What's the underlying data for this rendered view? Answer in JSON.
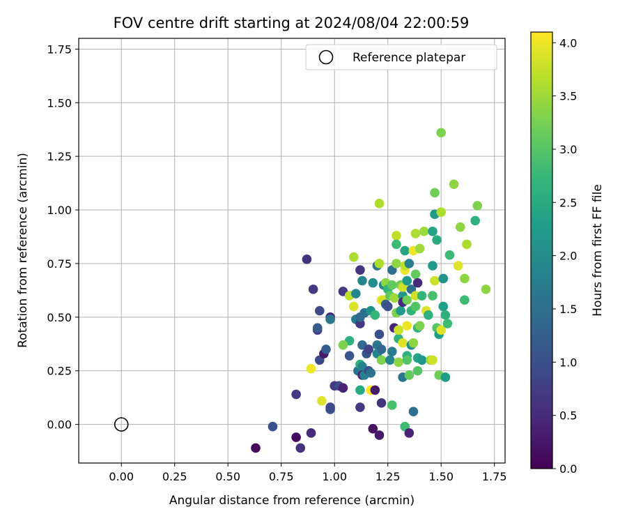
{
  "chart_data": {
    "type": "scatter",
    "title": "FOV centre drift starting at 2024/08/04 22:00:59",
    "xlabel": "Angular distance from reference (arcmin)",
    "ylabel": "Rotation from reference (arcmin)",
    "xlim": [
      -0.2,
      1.8
    ],
    "ylim": [
      -0.18,
      1.8
    ],
    "xticks": [
      0.0,
      0.25,
      0.5,
      0.75,
      1.0,
      1.25,
      1.5,
      1.75
    ],
    "xtick_labels": [
      "0.00",
      "0.25",
      "0.50",
      "0.75",
      "1.00",
      "1.25",
      "1.50",
      "1.75"
    ],
    "yticks": [
      0.0,
      0.25,
      0.5,
      0.75,
      1.0,
      1.25,
      1.5,
      1.75
    ],
    "ytick_labels": [
      "0.00",
      "0.25",
      "0.50",
      "0.75",
      "1.00",
      "1.25",
      "1.50",
      "1.75"
    ],
    "grid": true,
    "legend": {
      "placement": "top-right",
      "entries": [
        "Reference platepar"
      ]
    },
    "reference_point": {
      "x": 0.0,
      "y": 0.0
    },
    "colorbar": {
      "label": "Hours from first FF file",
      "range": [
        0.0,
        4.1
      ],
      "ticks": [
        0.0,
        0.5,
        1.0,
        1.5,
        2.0,
        2.5,
        3.0,
        3.5,
        4.0
      ],
      "tick_labels": [
        "0.0",
        "0.5",
        "1.0",
        "1.5",
        "2.0",
        "2.5",
        "3.0",
        "3.5",
        "4.0"
      ],
      "colormap": "viridis"
    },
    "points": [
      {
        "x": 0.63,
        "y": -0.11,
        "t": 0.1
      },
      {
        "x": 0.82,
        "y": -0.06,
        "t": 0.1
      },
      {
        "x": 0.84,
        "y": -0.11,
        "t": 0.6
      },
      {
        "x": 0.71,
        "y": -0.01,
        "t": 1.0
      },
      {
        "x": 0.89,
        "y": -0.04,
        "t": 0.5
      },
      {
        "x": 0.82,
        "y": 0.14,
        "t": 0.7
      },
      {
        "x": 0.87,
        "y": 0.77,
        "t": 0.6
      },
      {
        "x": 0.9,
        "y": 0.63,
        "t": 0.7
      },
      {
        "x": 0.93,
        "y": 0.53,
        "t": 0.9
      },
      {
        "x": 0.92,
        "y": 0.44,
        "t": 0.8
      },
      {
        "x": 0.92,
        "y": 0.45,
        "t": 1.2
      },
      {
        "x": 0.93,
        "y": 0.3,
        "t": 0.9
      },
      {
        "x": 0.95,
        "y": 0.33,
        "t": 0.3
      },
      {
        "x": 0.96,
        "y": 0.35,
        "t": 1.2
      },
      {
        "x": 0.94,
        "y": 0.11,
        "t": 3.9
      },
      {
        "x": 0.89,
        "y": 0.26,
        "t": 4.0
      },
      {
        "x": 0.98,
        "y": 0.07,
        "t": 1.1
      },
      {
        "x": 0.98,
        "y": 0.08,
        "t": 0.9
      },
      {
        "x": 1.0,
        "y": 0.18,
        "t": 0.7
      },
      {
        "x": 1.02,
        "y": 0.18,
        "t": 0.9
      },
      {
        "x": 1.04,
        "y": 0.17,
        "t": 0.4
      },
      {
        "x": 0.98,
        "y": 0.5,
        "t": 0.5
      },
      {
        "x": 0.98,
        "y": 0.49,
        "t": 1.6
      },
      {
        "x": 1.04,
        "y": 0.62,
        "t": 0.7
      },
      {
        "x": 1.07,
        "y": 0.39,
        "t": 2.6
      },
      {
        "x": 1.07,
        "y": 0.32,
        "t": 1.1
      },
      {
        "x": 1.04,
        "y": 0.37,
        "t": 3.3
      },
      {
        "x": 1.07,
        "y": 0.6,
        "t": 3.7
      },
      {
        "x": 1.09,
        "y": 0.78,
        "t": 3.6
      },
      {
        "x": 1.09,
        "y": 0.55,
        "t": 3.9
      },
      {
        "x": 1.1,
        "y": 0.49,
        "t": 1.7
      },
      {
        "x": 1.1,
        "y": 0.61,
        "t": 1.9
      },
      {
        "x": 1.11,
        "y": 0.25,
        "t": 1.6
      },
      {
        "x": 1.12,
        "y": 0.72,
        "t": 0.6
      },
      {
        "x": 1.12,
        "y": 0.47,
        "t": 0.7
      },
      {
        "x": 1.12,
        "y": 0.5,
        "t": 1.4
      },
      {
        "x": 1.12,
        "y": 0.08,
        "t": 0.7
      },
      {
        "x": 1.12,
        "y": 0.28,
        "t": 2.6
      },
      {
        "x": 1.13,
        "y": 0.67,
        "t": 1.9
      },
      {
        "x": 1.13,
        "y": 0.27,
        "t": 1.8
      },
      {
        "x": 1.13,
        "y": 0.23,
        "t": 0.5
      },
      {
        "x": 1.12,
        "y": 0.16,
        "t": 2.5
      },
      {
        "x": 1.14,
        "y": 0.52,
        "t": 1.5
      },
      {
        "x": 1.14,
        "y": 0.23,
        "t": 1.8
      },
      {
        "x": 1.13,
        "y": 0.37,
        "t": 1.4
      },
      {
        "x": 1.15,
        "y": 0.33,
        "t": 1.1
      },
      {
        "x": 1.16,
        "y": 0.35,
        "t": 0.8
      },
      {
        "x": 1.17,
        "y": 0.16,
        "t": 4.1
      },
      {
        "x": 1.17,
        "y": 0.53,
        "t": 2.1
      },
      {
        "x": 1.16,
        "y": 0.25,
        "t": 1.0
      },
      {
        "x": 1.17,
        "y": 0.24,
        "t": 1.5
      },
      {
        "x": 1.18,
        "y": 0.66,
        "t": 2.0
      },
      {
        "x": 1.18,
        "y": -0.02,
        "t": 0.2
      },
      {
        "x": 1.19,
        "y": 0.51,
        "t": 2.7
      },
      {
        "x": 1.19,
        "y": 0.16,
        "t": 0.3
      },
      {
        "x": 1.2,
        "y": 0.74,
        "t": 1.6
      },
      {
        "x": 1.21,
        "y": 0.75,
        "t": 3.6
      },
      {
        "x": 1.2,
        "y": 0.37,
        "t": 1.6
      },
      {
        "x": 1.2,
        "y": 0.33,
        "t": 1.9
      },
      {
        "x": 1.21,
        "y": 1.03,
        "t": 3.6
      },
      {
        "x": 1.21,
        "y": 0.42,
        "t": 1.0
      },
      {
        "x": 1.21,
        "y": -0.05,
        "t": 0.3
      },
      {
        "x": 1.22,
        "y": 0.58,
        "t": 4.0
      },
      {
        "x": 1.22,
        "y": 0.35,
        "t": 1.4
      },
      {
        "x": 1.22,
        "y": 0.3,
        "t": 3.3
      },
      {
        "x": 1.23,
        "y": 0.65,
        "t": 1.9
      },
      {
        "x": 1.22,
        "y": 0.1,
        "t": 0.6
      },
      {
        "x": 1.23,
        "y": 0.58,
        "t": 3.8
      },
      {
        "x": 1.24,
        "y": 0.66,
        "t": 3.4
      },
      {
        "x": 1.24,
        "y": 0.56,
        "t": 1.2
      },
      {
        "x": 1.25,
        "y": 0.55,
        "t": 1.0
      },
      {
        "x": 1.25,
        "y": 0.63,
        "t": 2.7
      },
      {
        "x": 1.26,
        "y": 0.6,
        "t": 3.1
      },
      {
        "x": 1.26,
        "y": 0.3,
        "t": 1.9
      },
      {
        "x": 1.27,
        "y": 0.34,
        "t": 1.7
      },
      {
        "x": 1.27,
        "y": 0.72,
        "t": 1.5
      },
      {
        "x": 1.27,
        "y": 0.09,
        "t": 2.9
      },
      {
        "x": 1.27,
        "y": 0.65,
        "t": 3.1
      },
      {
        "x": 1.28,
        "y": 0.59,
        "t": 3.5
      },
      {
        "x": 1.28,
        "y": 0.45,
        "t": 0.4
      },
      {
        "x": 1.29,
        "y": 0.88,
        "t": 3.7
      },
      {
        "x": 1.29,
        "y": 0.84,
        "t": 2.8
      },
      {
        "x": 1.29,
        "y": 0.75,
        "t": 3.4
      },
      {
        "x": 1.29,
        "y": 0.52,
        "t": 3.3
      },
      {
        "x": 1.3,
        "y": 0.44,
        "t": 2.4
      },
      {
        "x": 1.3,
        "y": 0.4,
        "t": 2.6
      },
      {
        "x": 1.3,
        "y": 0.44,
        "t": 3.8
      },
      {
        "x": 1.3,
        "y": 0.29,
        "t": 3.4
      },
      {
        "x": 1.31,
        "y": 0.65,
        "t": 3.2
      },
      {
        "x": 1.31,
        "y": 0.53,
        "t": 2.2
      },
      {
        "x": 1.32,
        "y": 0.6,
        "t": 2.2
      },
      {
        "x": 1.32,
        "y": 0.57,
        "t": 0.5
      },
      {
        "x": 1.32,
        "y": 0.64,
        "t": 3.8
      },
      {
        "x": 1.32,
        "y": 0.22,
        "t": 1.6
      },
      {
        "x": 1.32,
        "y": 0.38,
        "t": 3.9
      },
      {
        "x": 1.33,
        "y": 0.72,
        "t": 4.0
      },
      {
        "x": 1.33,
        "y": 0.81,
        "t": 2.4
      },
      {
        "x": 1.33,
        "y": 0.74,
        "t": 3.7
      },
      {
        "x": 1.33,
        "y": -0.01,
        "t": 2.8
      },
      {
        "x": 1.34,
        "y": 0.67,
        "t": 2.2
      },
      {
        "x": 1.34,
        "y": 0.58,
        "t": 3.2
      },
      {
        "x": 1.34,
        "y": 0.46,
        "t": 4.0
      },
      {
        "x": 1.34,
        "y": 0.32,
        "t": 2.6
      },
      {
        "x": 1.34,
        "y": 0.3,
        "t": 3.0
      },
      {
        "x": 1.35,
        "y": 0.75,
        "t": 1.8
      },
      {
        "x": 1.35,
        "y": 0.23,
        "t": 3.1
      },
      {
        "x": 1.35,
        "y": -0.04,
        "t": 0.4
      },
      {
        "x": 1.36,
        "y": 0.63,
        "t": 1.5
      },
      {
        "x": 1.36,
        "y": 0.53,
        "t": 2.7
      },
      {
        "x": 1.36,
        "y": 0.37,
        "t": 2.0
      },
      {
        "x": 1.37,
        "y": 0.81,
        "t": 4.0
      },
      {
        "x": 1.37,
        "y": 0.38,
        "t": 3.4
      },
      {
        "x": 1.37,
        "y": 0.06,
        "t": 1.5
      },
      {
        "x": 1.38,
        "y": 0.89,
        "t": 3.6
      },
      {
        "x": 1.38,
        "y": 0.7,
        "t": 3.1
      },
      {
        "x": 1.38,
        "y": 0.6,
        "t": 3.8
      },
      {
        "x": 1.38,
        "y": 0.55,
        "t": 3.0
      },
      {
        "x": 1.39,
        "y": 0.66,
        "t": 0.5
      },
      {
        "x": 1.39,
        "y": 0.45,
        "t": 2.7
      },
      {
        "x": 1.39,
        "y": 0.31,
        "t": 2.4
      },
      {
        "x": 1.39,
        "y": 0.25,
        "t": 3.0
      },
      {
        "x": 1.4,
        "y": 0.82,
        "t": 3.5
      },
      {
        "x": 1.4,
        "y": 0.46,
        "t": 3.3
      },
      {
        "x": 1.41,
        "y": 0.6,
        "t": 2.7
      },
      {
        "x": 1.41,
        "y": 0.3,
        "t": 2.2
      },
      {
        "x": 1.42,
        "y": 0.9,
        "t": 3.5
      },
      {
        "x": 1.43,
        "y": 0.53,
        "t": 3.9
      },
      {
        "x": 1.44,
        "y": 0.51,
        "t": 2.6
      },
      {
        "x": 1.45,
        "y": 0.3,
        "t": 3.5
      },
      {
        "x": 1.46,
        "y": 0.9,
        "t": 2.4
      },
      {
        "x": 1.46,
        "y": 0.74,
        "t": 2.2
      },
      {
        "x": 1.46,
        "y": 0.6,
        "t": 2.9
      },
      {
        "x": 1.46,
        "y": 0.3,
        "t": 3.8
      },
      {
        "x": 1.47,
        "y": 1.08,
        "t": 3.2
      },
      {
        "x": 1.47,
        "y": 0.98,
        "t": 2.2
      },
      {
        "x": 1.47,
        "y": 0.67,
        "t": 3.8
      },
      {
        "x": 1.48,
        "y": 0.86,
        "t": 2.5
      },
      {
        "x": 1.48,
        "y": 0.45,
        "t": 3.0
      },
      {
        "x": 1.49,
        "y": 0.42,
        "t": 2.3
      },
      {
        "x": 1.49,
        "y": 0.23,
        "t": 3.2
      },
      {
        "x": 1.5,
        "y": 1.36,
        "t": 3.3
      },
      {
        "x": 1.5,
        "y": 0.99,
        "t": 3.6
      },
      {
        "x": 1.5,
        "y": 0.44,
        "t": 3.9
      },
      {
        "x": 1.51,
        "y": 0.55,
        "t": 2.3
      },
      {
        "x": 1.51,
        "y": 0.68,
        "t": 2.1
      },
      {
        "x": 1.52,
        "y": 0.51,
        "t": 2.6
      },
      {
        "x": 1.52,
        "y": 0.22,
        "t": 2.3
      },
      {
        "x": 1.53,
        "y": 0.47,
        "t": 2.8
      },
      {
        "x": 1.54,
        "y": 0.79,
        "t": 2.8
      },
      {
        "x": 1.56,
        "y": 1.12,
        "t": 3.4
      },
      {
        "x": 1.58,
        "y": 0.74,
        "t": 3.9
      },
      {
        "x": 1.59,
        "y": 0.92,
        "t": 3.4
      },
      {
        "x": 1.61,
        "y": 0.68,
        "t": 3.4
      },
      {
        "x": 1.62,
        "y": 0.84,
        "t": 3.6
      },
      {
        "x": 1.61,
        "y": 0.58,
        "t": 2.8
      },
      {
        "x": 1.66,
        "y": 0.95,
        "t": 2.6
      },
      {
        "x": 1.67,
        "y": 1.02,
        "t": 3.3
      },
      {
        "x": 1.71,
        "y": 0.63,
        "t": 3.4
      }
    ]
  }
}
